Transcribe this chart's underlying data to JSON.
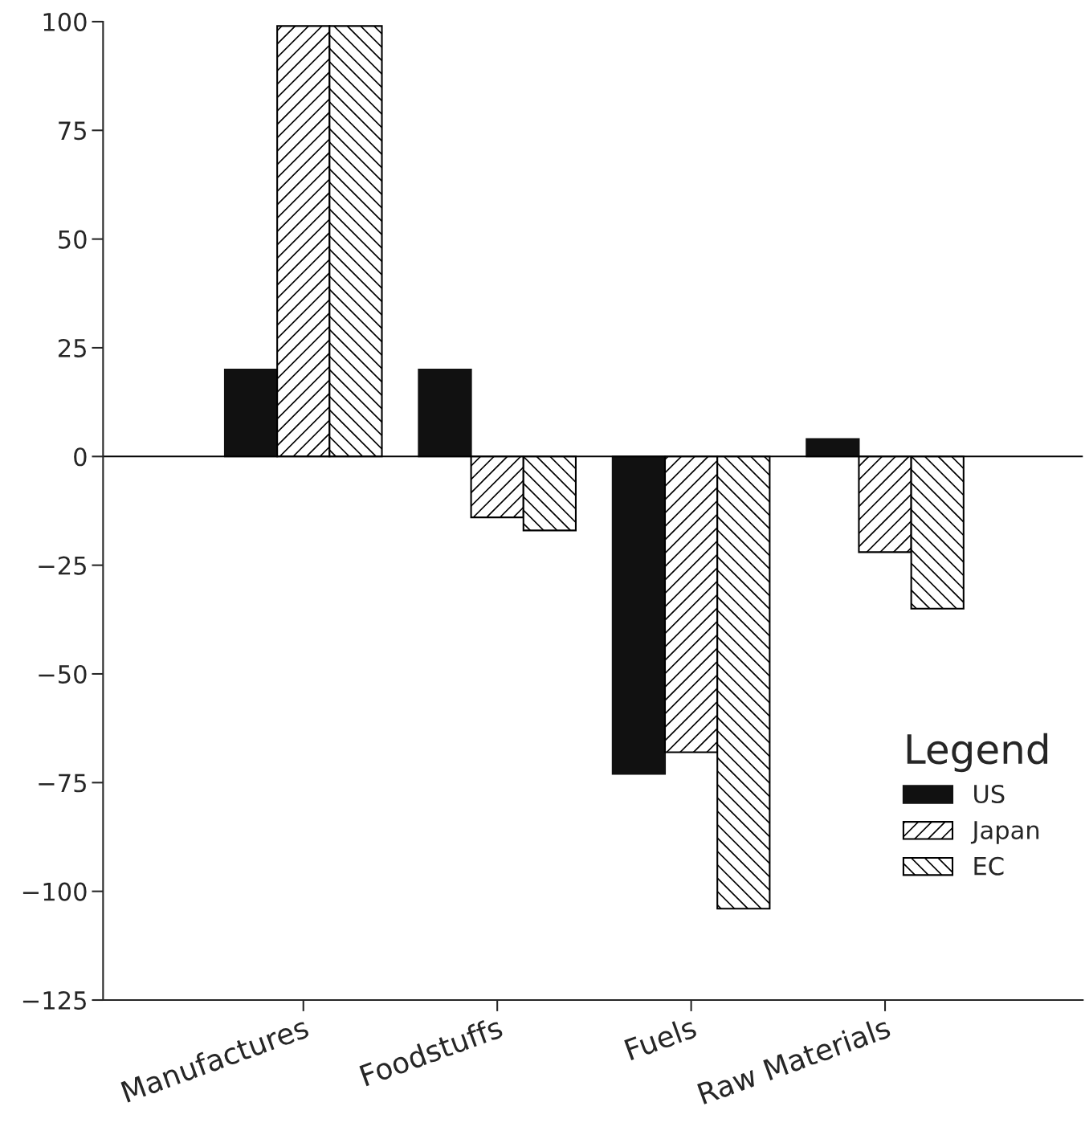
{
  "chart_data": {
    "type": "bar",
    "categories": [
      "Manufactures",
      "Foodstuffs",
      "Fuels",
      "Raw Materials"
    ],
    "series": [
      {
        "name": "US",
        "color": "#111111",
        "values": [
          20,
          20,
          -73,
          4
        ]
      },
      {
        "name": "Japan",
        "color": "#000000",
        "values": [
          99,
          -14,
          -68,
          -22
        ]
      },
      {
        "name": "EC",
        "color": "#000000",
        "values": [
          99,
          -17,
          -104,
          -35
        ]
      }
    ],
    "ylim": [
      -125,
      100
    ],
    "yticks": [
      {
        "value": -125,
        "label": "−125"
      },
      {
        "value": -100,
        "label": "−100"
      },
      {
        "value": -75,
        "label": "−75"
      },
      {
        "value": -50,
        "label": "−50"
      },
      {
        "value": -25,
        "label": "−25"
      },
      0,
      25,
      50,
      75,
      100
    ],
    "ref_lines": [
      {
        "axis": "y",
        "value": 0,
        "color": "#000000"
      }
    ],
    "legend_title": "Legend",
    "legend": "lower right",
    "grid": false
  }
}
